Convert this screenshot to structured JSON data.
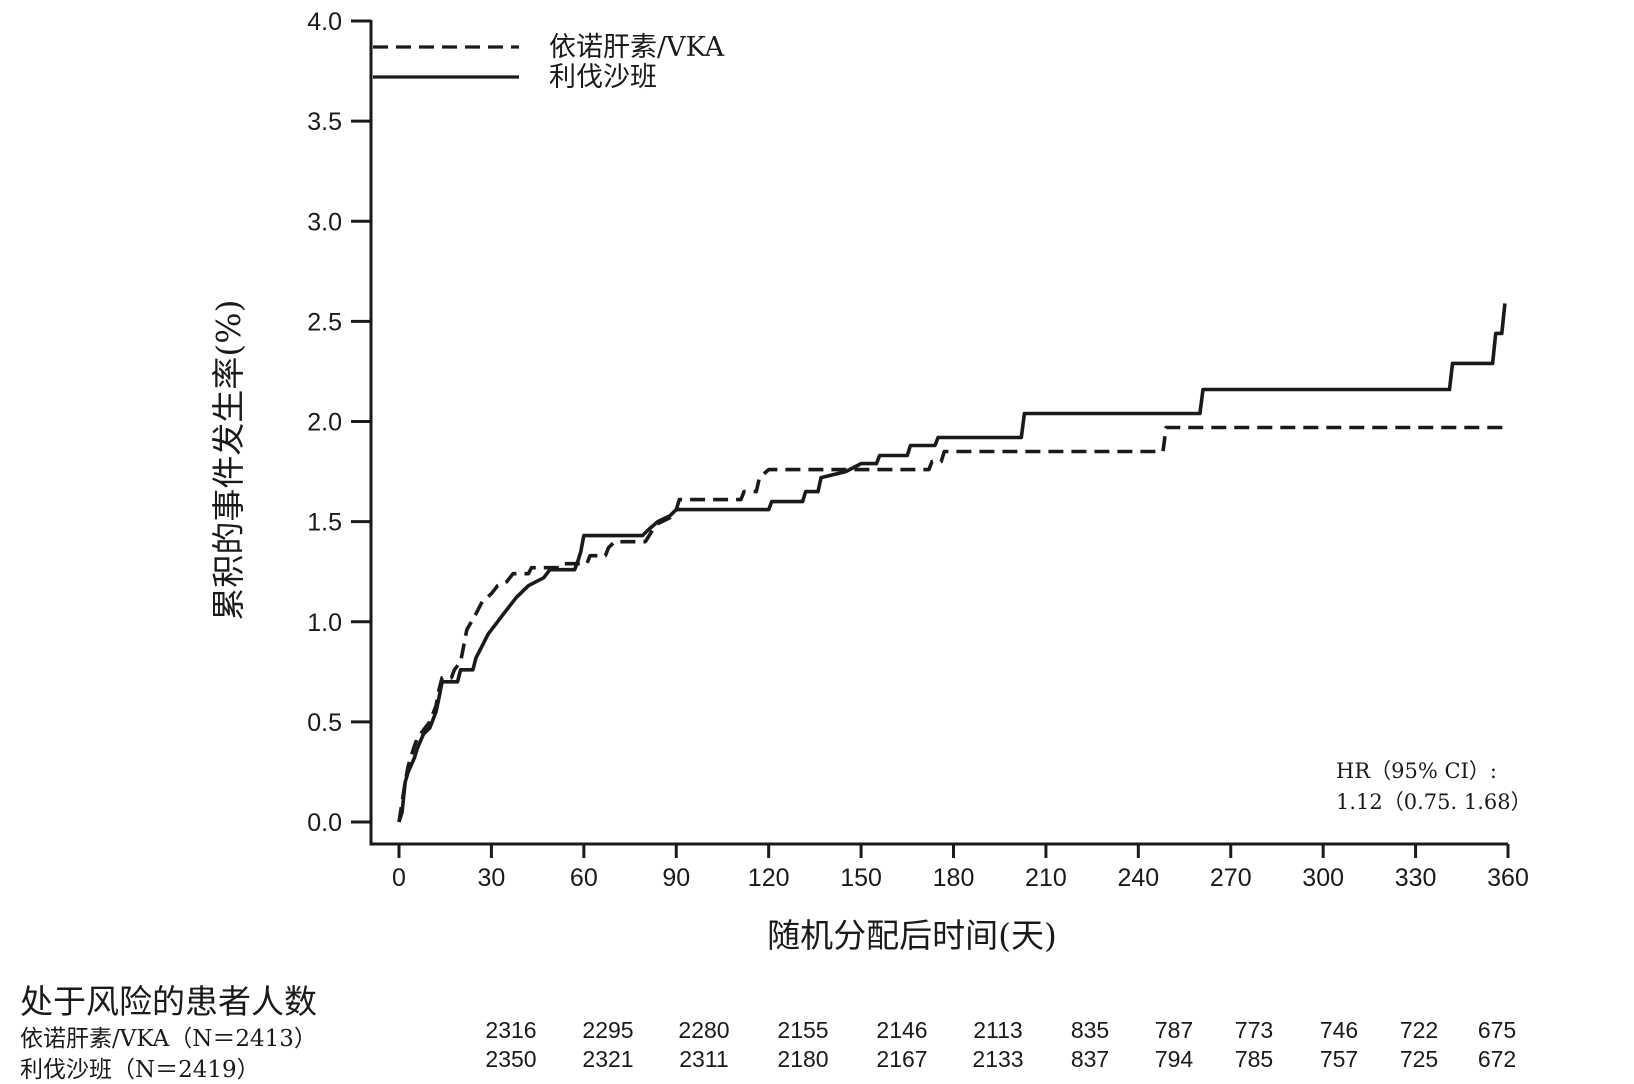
{
  "chart_data": {
    "type": "line",
    "title": "",
    "xlabel": "随机分配后时间(天)",
    "ylabel": "累积的事件发生率(%)",
    "xlim": [
      0,
      360
    ],
    "ylim": [
      0,
      4.0
    ],
    "x_ticks": [
      0,
      30,
      60,
      90,
      120,
      150,
      180,
      210,
      240,
      270,
      300,
      330,
      360
    ],
    "y_ticks": [
      0.0,
      0.5,
      1.0,
      1.5,
      2.0,
      2.5,
      3.0,
      3.5,
      4.0
    ],
    "y_tick_labels": [
      "0.0",
      "0.5",
      "1.0",
      "1.5",
      "2.0",
      "2.5",
      "3.0",
      "3.5",
      "4.0"
    ],
    "legend_position": "top-left",
    "grid": false,
    "series": [
      {
        "name": "依诺肝素/VKA",
        "style": "dashed",
        "color": "#1a1a1a",
        "points": [
          [
            0,
            0.0
          ],
          [
            1,
            0.1
          ],
          [
            2,
            0.2
          ],
          [
            3,
            0.28
          ],
          [
            4,
            0.33
          ],
          [
            5,
            0.38
          ],
          [
            6,
            0.42
          ],
          [
            8,
            0.46
          ],
          [
            10,
            0.5
          ],
          [
            12,
            0.58
          ],
          [
            13,
            0.66
          ],
          [
            14,
            0.72
          ],
          [
            17,
            0.72
          ],
          [
            18,
            0.76
          ],
          [
            20,
            0.8
          ],
          [
            21,
            0.88
          ],
          [
            22,
            0.96
          ],
          [
            25,
            1.04
          ],
          [
            27,
            1.1
          ],
          [
            30,
            1.14
          ],
          [
            32,
            1.18
          ],
          [
            35,
            1.2
          ],
          [
            37,
            1.24
          ],
          [
            42,
            1.24
          ],
          [
            43,
            1.27
          ],
          [
            52,
            1.27
          ],
          [
            53,
            1.29
          ],
          [
            61,
            1.29
          ],
          [
            62,
            1.33
          ],
          [
            67,
            1.33
          ],
          [
            68,
            1.37
          ],
          [
            70,
            1.4
          ],
          [
            80,
            1.4
          ],
          [
            82,
            1.45
          ],
          [
            84,
            1.49
          ],
          [
            88,
            1.52
          ],
          [
            90,
            1.56
          ],
          [
            91,
            1.61
          ],
          [
            111,
            1.61
          ],
          [
            112,
            1.65
          ],
          [
            116,
            1.65
          ],
          [
            117,
            1.72
          ],
          [
            120,
            1.76
          ],
          [
            148,
            1.76
          ],
          [
            172,
            1.76
          ],
          [
            173,
            1.8
          ],
          [
            176,
            1.8
          ],
          [
            177,
            1.85
          ],
          [
            248,
            1.85
          ],
          [
            249,
            1.97
          ],
          [
            359,
            1.97
          ]
        ]
      },
      {
        "name": "利伐沙班",
        "style": "solid",
        "color": "#1a1a1a",
        "points": [
          [
            0,
            0.0
          ],
          [
            1,
            0.05
          ],
          [
            2,
            0.2
          ],
          [
            3,
            0.25
          ],
          [
            5,
            0.32
          ],
          [
            6,
            0.37
          ],
          [
            8,
            0.44
          ],
          [
            10,
            0.47
          ],
          [
            12,
            0.55
          ],
          [
            13,
            0.62
          ],
          [
            14,
            0.7
          ],
          [
            19,
            0.7
          ],
          [
            20,
            0.76
          ],
          [
            24,
            0.76
          ],
          [
            25,
            0.82
          ],
          [
            27,
            0.88
          ],
          [
            29,
            0.94
          ],
          [
            31,
            0.98
          ],
          [
            34,
            1.04
          ],
          [
            36,
            1.08
          ],
          [
            38,
            1.12
          ],
          [
            42,
            1.18
          ],
          [
            47,
            1.22
          ],
          [
            49,
            1.26
          ],
          [
            57,
            1.26
          ],
          [
            58,
            1.3
          ],
          [
            59,
            1.35
          ],
          [
            60,
            1.43
          ],
          [
            79,
            1.43
          ],
          [
            81,
            1.46
          ],
          [
            84,
            1.5
          ],
          [
            88,
            1.53
          ],
          [
            90,
            1.56
          ],
          [
            120,
            1.56
          ],
          [
            121,
            1.6
          ],
          [
            131,
            1.6
          ],
          [
            132,
            1.65
          ],
          [
            136,
            1.65
          ],
          [
            137,
            1.72
          ],
          [
            145,
            1.75
          ],
          [
            150,
            1.79
          ],
          [
            155,
            1.79
          ],
          [
            156,
            1.83
          ],
          [
            165,
            1.83
          ],
          [
            166,
            1.88
          ],
          [
            174,
            1.88
          ],
          [
            175,
            1.92
          ],
          [
            202,
            1.92
          ],
          [
            203,
            2.04
          ],
          [
            260,
            2.04
          ],
          [
            261,
            2.16
          ],
          [
            341,
            2.16
          ],
          [
            342,
            2.29
          ],
          [
            355,
            2.29
          ],
          [
            356,
            2.44
          ],
          [
            358,
            2.44
          ],
          [
            359,
            2.59
          ]
        ]
      }
    ],
    "annotation": {
      "line1": "HR（95% CI）:",
      "line2": "1.12（0.75. 1.68）"
    }
  },
  "risk_table": {
    "title": "处于风险的患者人数",
    "rows": [
      {
        "label": "依诺肝素/VKA（N＝2413）",
        "values": [
          "2316",
          "2295",
          "2280",
          "2155",
          "2146",
          "2113",
          "835",
          "787",
          "773",
          "746",
          "722",
          "675"
        ]
      },
      {
        "label": "利伐沙班（N＝2419）",
        "values": [
          "2350",
          "2321",
          "2311",
          "2180",
          "2167",
          "2133",
          "837",
          "794",
          "785",
          "757",
          "725",
          "672"
        ]
      }
    ]
  }
}
